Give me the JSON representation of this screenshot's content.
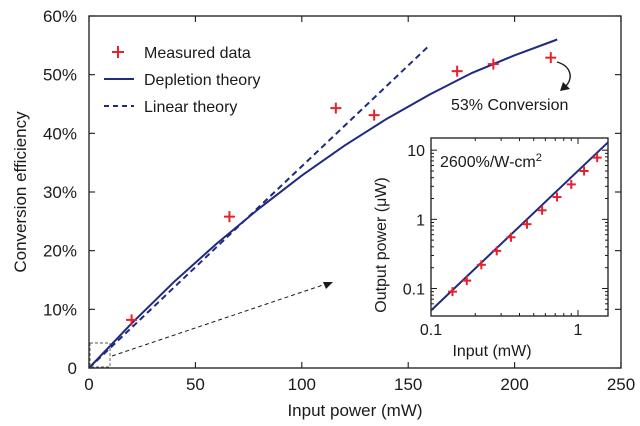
{
  "chart_data": [
    {
      "type": "scatter+line",
      "title": "",
      "xlabel": "Input power (mW)",
      "ylabel": "Conversion efficiency",
      "xlim": [
        0,
        250
      ],
      "ylim": [
        0,
        60
      ],
      "x_ticks": [
        0,
        50,
        100,
        150,
        200,
        250
      ],
      "x_tick_labels": [
        "0",
        "50",
        "100",
        "150",
        "200",
        "250"
      ],
      "y_ticks": [
        0,
        10,
        20,
        30,
        40,
        50,
        60
      ],
      "y_tick_labels": [
        "0",
        "10%",
        "20%",
        "30%",
        "40%",
        "50%",
        "60%"
      ],
      "grid": false,
      "legend_position": "top-left",
      "series": [
        {
          "name": "Measured data",
          "kind": "scatter",
          "marker": "plus",
          "color": "#e8202a",
          "x": [
            20,
            66,
            116,
            134,
            173,
            190,
            217
          ],
          "y": [
            8.2,
            25.8,
            44.3,
            43.1,
            50.6,
            51.8,
            52.9
          ]
        },
        {
          "name": "Depletion theory",
          "kind": "line",
          "style": "solid",
          "color": "#1f2a80",
          "x": [
            0,
            20,
            40,
            60,
            80,
            100,
            120,
            140,
            160,
            180,
            200,
            220
          ],
          "y": [
            0,
            7.6,
            14.7,
            21.2,
            27.2,
            32.8,
            37.9,
            42.5,
            46.6,
            50.3,
            53.3,
            56.0
          ]
        },
        {
          "name": "Linear theory",
          "kind": "line",
          "style": "dashed",
          "color": "#1f2a80",
          "x": [
            0,
            160
          ],
          "y": [
            0,
            55.0
          ]
        }
      ],
      "annotations": [
        {
          "text": "53% Conversion",
          "points_to": [
            217,
            52.9
          ]
        }
      ]
    },
    {
      "type": "scatter+line",
      "title": "",
      "xlabel": "Input (mW)",
      "ylabel": "Output power (μW)",
      "xscale": "log",
      "yscale": "log",
      "xlim": [
        0.1,
        1.6
      ],
      "ylim": [
        0.04,
        15
      ],
      "x_ticks": [
        0.1,
        1
      ],
      "x_tick_labels": [
        "0.1",
        "1"
      ],
      "y_ticks": [
        0.1,
        1,
        10
      ],
      "y_tick_labels": [
        "0.1",
        "1",
        "10"
      ],
      "annotation": {
        "text": "2600%/W-cm",
        "superscript": "2"
      },
      "series": [
        {
          "name": "",
          "kind": "scatter",
          "marker": "plus",
          "color": "#e8202a",
          "x": [
            0.14,
            0.175,
            0.22,
            0.28,
            0.35,
            0.45,
            0.57,
            0.72,
            0.9,
            1.1,
            1.35
          ],
          "y": [
            0.09,
            0.13,
            0.22,
            0.35,
            0.55,
            0.85,
            1.35,
            2.1,
            3.2,
            5.0,
            7.8
          ]
        },
        {
          "name": "",
          "kind": "line",
          "style": "solid",
          "color": "#1f2a80",
          "x": [
            0.1,
            1.6
          ],
          "y": [
            0.048,
            13.0
          ]
        }
      ]
    }
  ]
}
